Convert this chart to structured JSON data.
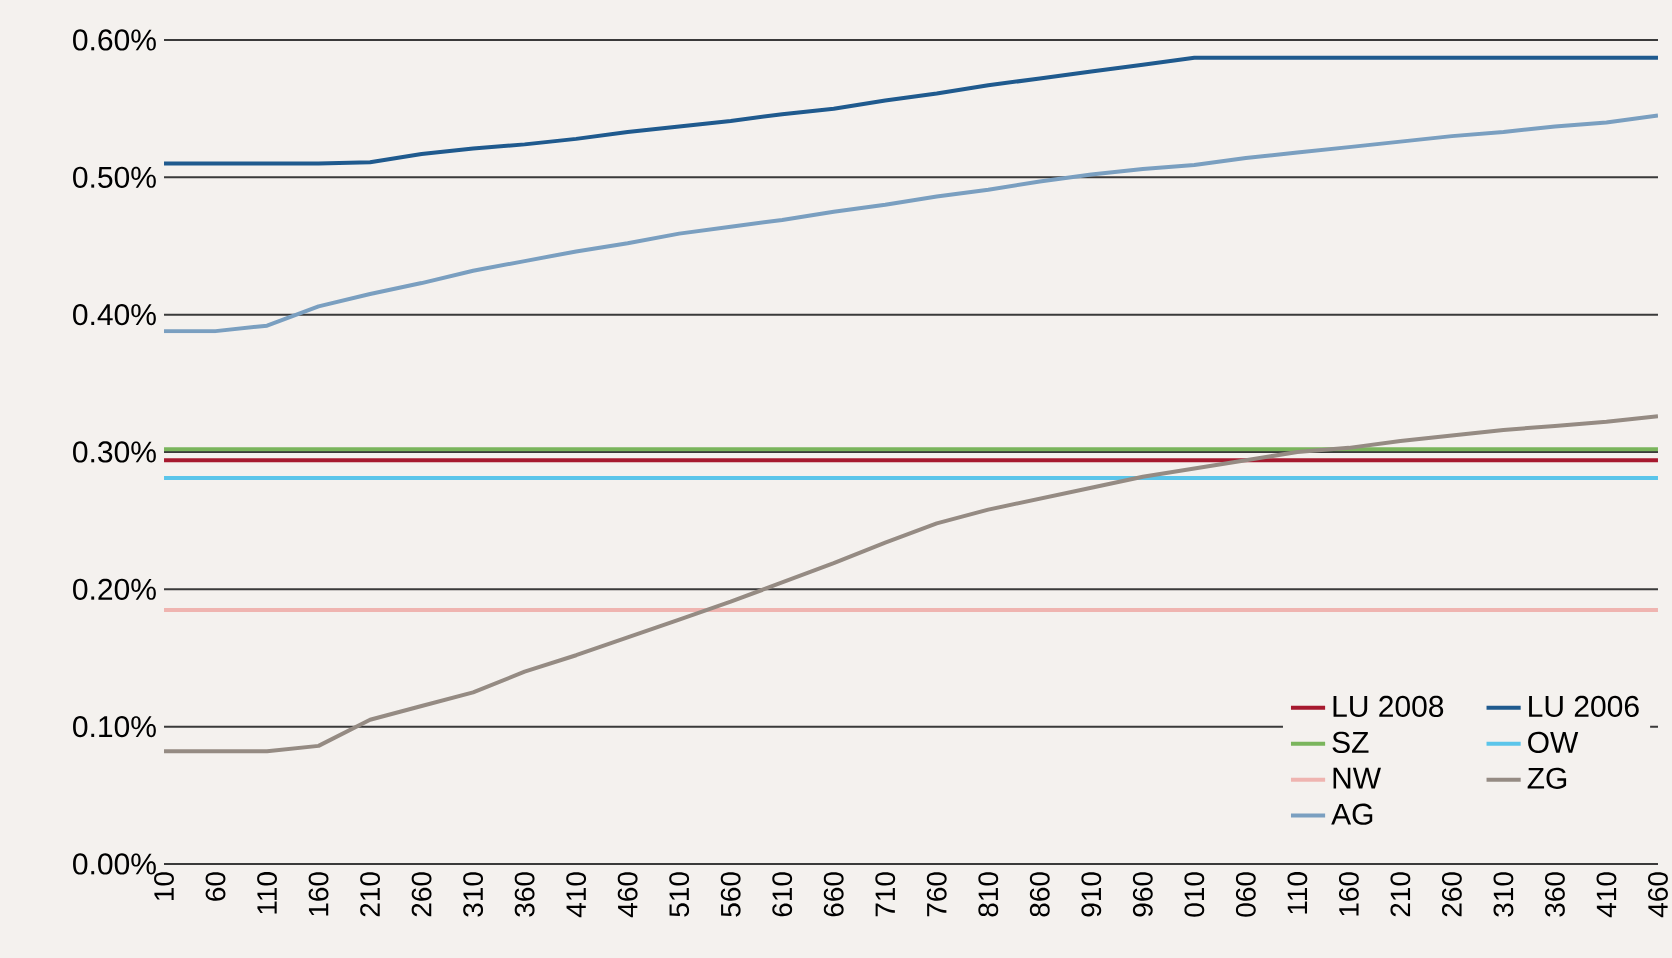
{
  "chart_data": {
    "type": "line",
    "ylim": [
      0,
      0.6
    ],
    "categories": [
      "10",
      "60",
      "110",
      "160",
      "210",
      "260",
      "310",
      "360",
      "410",
      "460",
      "510",
      "560",
      "610",
      "660",
      "710",
      "760",
      "810",
      "860",
      "910",
      "960",
      "010",
      "060",
      "110",
      "160",
      "210",
      "260",
      "310",
      "360",
      "410",
      "460"
    ],
    "yticks": [
      {
        "value": 0,
        "label": "0.00%"
      },
      {
        "value": 0.1,
        "label": "0.10%"
      },
      {
        "value": 0.2,
        "label": "0.20%"
      },
      {
        "value": 0.3,
        "label": "0.30%"
      },
      {
        "value": 0.4,
        "label": "0.40%"
      },
      {
        "value": 0.5,
        "label": "0.50%"
      },
      {
        "value": 0.6,
        "label": "0.60%"
      }
    ],
    "grid": "y",
    "legend": "bottom right",
    "marker": "none",
    "line_style": "solid",
    "series": [
      {
        "name": "LU 2008",
        "color": "#a6192e",
        "values": [
          0.294,
          0.294,
          0.294,
          0.294,
          0.294,
          0.294,
          0.294,
          0.294,
          0.294,
          0.294,
          0.294,
          0.294,
          0.294,
          0.294,
          0.294,
          0.294,
          0.294,
          0.294,
          0.294,
          0.294,
          0.294,
          0.294,
          0.294,
          0.294,
          0.294,
          0.294,
          0.294,
          0.294,
          0.294,
          0.294
        ]
      },
      {
        "name": "LU 2006",
        "color": "#1f5a8e",
        "values": [
          0.51,
          0.51,
          0.51,
          0.51,
          0.511,
          0.517,
          0.521,
          0.524,
          0.528,
          0.533,
          0.537,
          0.541,
          0.546,
          0.55,
          0.556,
          0.561,
          0.567,
          0.572,
          0.577,
          0.582,
          0.587,
          0.587,
          0.587,
          0.587,
          0.587,
          0.587,
          0.587,
          0.587,
          0.587,
          0.587
        ]
      },
      {
        "name": "SZ",
        "color": "#7ab55c",
        "values": [
          0.302,
          0.302,
          0.302,
          0.302,
          0.302,
          0.302,
          0.302,
          0.302,
          0.302,
          0.302,
          0.302,
          0.302,
          0.302,
          0.302,
          0.302,
          0.302,
          0.302,
          0.302,
          0.302,
          0.302,
          0.302,
          0.302,
          0.302,
          0.302,
          0.302,
          0.302,
          0.302,
          0.302,
          0.302,
          0.302
        ]
      },
      {
        "name": "OW",
        "color": "#5bc5ea",
        "values": [
          0.281,
          0.281,
          0.281,
          0.281,
          0.281,
          0.281,
          0.281,
          0.281,
          0.281,
          0.281,
          0.281,
          0.281,
          0.281,
          0.281,
          0.281,
          0.281,
          0.281,
          0.281,
          0.281,
          0.281,
          0.281,
          0.281,
          0.281,
          0.281,
          0.281,
          0.281,
          0.281,
          0.281,
          0.281,
          0.281
        ]
      },
      {
        "name": "NW",
        "color": "#efb4b0",
        "values": [
          0.185,
          0.185,
          0.185,
          0.185,
          0.185,
          0.185,
          0.185,
          0.185,
          0.185,
          0.185,
          0.185,
          0.185,
          0.185,
          0.185,
          0.185,
          0.185,
          0.185,
          0.185,
          0.185,
          0.185,
          0.185,
          0.185,
          0.185,
          0.185,
          0.185,
          0.185,
          0.185,
          0.185,
          0.185,
          0.185
        ]
      },
      {
        "name": "ZG",
        "color": "#958b83",
        "values": [
          0.082,
          0.082,
          0.082,
          0.086,
          0.105,
          0.115,
          0.125,
          0.14,
          0.152,
          0.165,
          0.178,
          0.191,
          0.205,
          0.219,
          0.234,
          0.248,
          0.258,
          0.266,
          0.274,
          0.282,
          0.288,
          0.294,
          0.3,
          0.303,
          0.308,
          0.312,
          0.316,
          0.319,
          0.322,
          0.326
        ]
      },
      {
        "name": "AG",
        "color": "#7a9fc0",
        "values": [
          0.388,
          0.388,
          0.392,
          0.406,
          0.415,
          0.423,
          0.432,
          0.439,
          0.446,
          0.452,
          0.459,
          0.464,
          0.469,
          0.475,
          0.48,
          0.486,
          0.491,
          0.497,
          0.502,
          0.506,
          0.509,
          0.514,
          0.518,
          0.522,
          0.526,
          0.53,
          0.533,
          0.537,
          0.54,
          0.545
        ]
      }
    ]
  }
}
